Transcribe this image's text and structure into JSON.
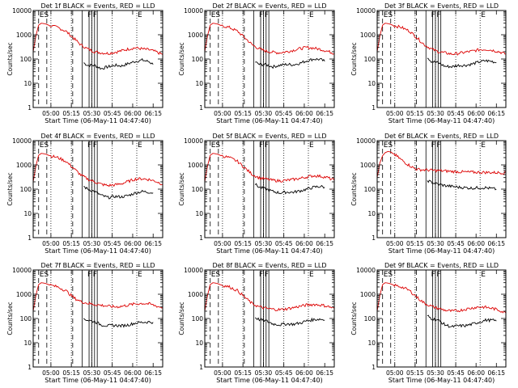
{
  "chart_data": [
    {
      "type": "line",
      "title": "Det 1f BLACK = Events, RED = LLD",
      "xlabel": "Start Time (06-May-11 04:47:40)",
      "ylabel": "Counts/sec",
      "x_ticks": [
        "05:00",
        "05:15",
        "05:30",
        "05:45",
        "06:00",
        "06:15"
      ],
      "y_ticks": [
        "1",
        "10",
        "100",
        "1000",
        "10000"
      ],
      "yscale": "log",
      "ylim": [
        1,
        10000
      ],
      "xlim_minutes_from_0447": [
        0,
        95
      ],
      "markers": [
        "ES",
        "F",
        "E"
      ],
      "series": [
        {
          "color": "#000000",
          "x": [
            37,
            40,
            45,
            50,
            55,
            60,
            65,
            70,
            75,
            80,
            85,
            88
          ],
          "values": [
            70,
            55,
            55,
            40,
            48,
            55,
            52,
            65,
            80,
            90,
            78,
            60
          ]
        },
        {
          "color": "#dd0000",
          "x": [
            0,
            2,
            4,
            6,
            9,
            12,
            18,
            24,
            30,
            35,
            40,
            45,
            50,
            55,
            60,
            65,
            70,
            75,
            80,
            85,
            90,
            95
          ],
          "values": [
            200,
            900,
            2500,
            3000,
            2800,
            2400,
            2000,
            1400,
            700,
            380,
            260,
            200,
            180,
            170,
            190,
            220,
            260,
            290,
            260,
            240,
            200,
            150
          ]
        }
      ]
    },
    {
      "type": "line",
      "title": "Det 2f BLACK = Events, RED = LLD",
      "xlabel": "Start Time (06-May-11 04:47:40)",
      "ylabel": "Counts/sec",
      "x_ticks": [
        "05:00",
        "05:15",
        "05:30",
        "05:45",
        "06:00",
        "06:15"
      ],
      "y_ticks": [
        "1",
        "10",
        "100",
        "1000",
        "10000"
      ],
      "yscale": "log",
      "ylim": [
        1,
        10000
      ],
      "xlim_minutes_from_0447": [
        0,
        95
      ],
      "markers": [
        "ES",
        "F",
        "E"
      ],
      "series": [
        {
          "color": "#000000",
          "x": [
            37,
            40,
            45,
            50,
            55,
            60,
            65,
            70,
            75,
            80,
            85,
            88
          ],
          "values": [
            75,
            60,
            58,
            48,
            55,
            60,
            58,
            68,
            85,
            100,
            95,
            80
          ]
        },
        {
          "color": "#dd0000",
          "x": [
            0,
            2,
            4,
            6,
            9,
            12,
            18,
            24,
            30,
            35,
            40,
            45,
            50,
            55,
            60,
            65,
            70,
            75,
            80,
            85,
            90,
            95
          ],
          "values": [
            200,
            900,
            2500,
            3000,
            2800,
            2400,
            2000,
            1400,
            700,
            380,
            260,
            210,
            190,
            180,
            200,
            230,
            270,
            300,
            280,
            250,
            210,
            170
          ]
        }
      ]
    },
    {
      "type": "line",
      "title": "Det 3f BLACK = Events, RED = LLD",
      "xlabel": "Start Time (06-May-11 04:47:40)",
      "ylabel": "Counts/sec",
      "x_ticks": [
        "05:00",
        "05:15",
        "05:30",
        "05:45",
        "06:00",
        "06:15"
      ],
      "y_ticks": [
        "1",
        "10",
        "100",
        "1000",
        "10000"
      ],
      "yscale": "log",
      "ylim": [
        1,
        10000
      ],
      "xlim_minutes_from_0447": [
        0,
        95
      ],
      "markers": [
        "ES",
        "F",
        "E"
      ],
      "series": [
        {
          "color": "#000000",
          "x": [
            37,
            40,
            45,
            50,
            55,
            60,
            65,
            70,
            75,
            80,
            85,
            88
          ],
          "values": [
            120,
            80,
            70,
            50,
            48,
            55,
            55,
            62,
            75,
            85,
            80,
            70
          ]
        },
        {
          "color": "#dd0000",
          "x": [
            0,
            2,
            4,
            6,
            9,
            12,
            18,
            24,
            30,
            35,
            40,
            45,
            50,
            55,
            60,
            65,
            70,
            75,
            80,
            85,
            90,
            95
          ],
          "values": [
            200,
            900,
            2500,
            3000,
            2800,
            2400,
            2000,
            1400,
            700,
            380,
            260,
            200,
            180,
            160,
            170,
            190,
            210,
            240,
            250,
            230,
            200,
            160
          ]
        }
      ]
    },
    {
      "type": "line",
      "title": "Det 4f BLACK = Events, RED = LLD",
      "xlabel": "Start Time (06-May-11 04:47:40)",
      "ylabel": "Counts/sec",
      "x_ticks": [
        "05:00",
        "05:15",
        "05:30",
        "05:45",
        "06:00",
        "06:15"
      ],
      "y_ticks": [
        "1",
        "10",
        "100",
        "1000",
        "10000"
      ],
      "yscale": "log",
      "ylim": [
        1,
        10000
      ],
      "xlim_minutes_from_0447": [
        0,
        95
      ],
      "markers": [
        "ES",
        "F",
        "E"
      ],
      "series": [
        {
          "color": "#000000",
          "x": [
            37,
            40,
            45,
            50,
            55,
            60,
            65,
            70,
            75,
            80,
            85,
            88
          ],
          "values": [
            130,
            100,
            80,
            55,
            45,
            50,
            48,
            55,
            70,
            80,
            75,
            70
          ]
        },
        {
          "color": "#dd0000",
          "x": [
            0,
            2,
            4,
            6,
            9,
            12,
            18,
            24,
            30,
            35,
            40,
            45,
            50,
            55,
            60,
            65,
            70,
            75,
            80,
            85,
            90,
            95
          ],
          "values": [
            200,
            900,
            2500,
            3000,
            2800,
            2400,
            2000,
            1400,
            700,
            380,
            260,
            200,
            160,
            140,
            150,
            170,
            210,
            260,
            270,
            250,
            210,
            160
          ]
        }
      ]
    },
    {
      "type": "line",
      "title": "Det 5f BLACK = Events, RED = LLD",
      "xlabel": "Start Time (06-May-11 04:47:40)",
      "ylabel": "Counts/sec",
      "x_ticks": [
        "05:00",
        "05:15",
        "05:30",
        "05:45",
        "06:00",
        "06:15"
      ],
      "y_ticks": [
        "1",
        "10",
        "100",
        "1000",
        "10000"
      ],
      "yscale": "log",
      "ylim": [
        1,
        10000
      ],
      "xlim_minutes_from_0447": [
        0,
        95
      ],
      "markers": [
        "ES",
        "F",
        "E"
      ],
      "series": [
        {
          "color": "#000000",
          "x": [
            37,
            40,
            45,
            50,
            55,
            60,
            65,
            70,
            75,
            80,
            85,
            88
          ],
          "values": [
            160,
            120,
            100,
            80,
            70,
            75,
            75,
            85,
            100,
            120,
            130,
            120
          ]
        },
        {
          "color": "#dd0000",
          "x": [
            0,
            2,
            4,
            6,
            9,
            12,
            18,
            24,
            30,
            35,
            40,
            45,
            50,
            55,
            60,
            65,
            70,
            75,
            80,
            85,
            90,
            95
          ],
          "values": [
            200,
            900,
            2500,
            3000,
            2800,
            2400,
            2000,
            1400,
            700,
            400,
            290,
            260,
            230,
            220,
            230,
            250,
            280,
            320,
            360,
            340,
            300,
            230
          ]
        }
      ]
    },
    {
      "type": "line",
      "title": "Det 6f BLACK = Events, RED = LLD",
      "xlabel": "Start Time (06-May-11 04:47:40)",
      "ylabel": "Counts/sec",
      "x_ticks": [
        "05:00",
        "05:15",
        "05:30",
        "05:45",
        "06:00",
        "06:15"
      ],
      "y_ticks": [
        "1",
        "10",
        "100",
        "1000",
        "10000"
      ],
      "yscale": "log",
      "ylim": [
        1,
        10000
      ],
      "xlim_minutes_from_0447": [
        0,
        95
      ],
      "markers": [
        "ES",
        "F",
        "E"
      ],
      "series": [
        {
          "color": "#000000",
          "x": [
            37,
            40,
            45,
            50,
            55,
            60,
            65,
            70,
            75,
            80,
            85,
            88
          ],
          "values": [
            230,
            190,
            160,
            140,
            130,
            120,
            115,
            110,
            115,
            115,
            105,
            100
          ]
        },
        {
          "color": "#dd0000",
          "x": [
            0,
            2,
            4,
            6,
            8,
            10,
            14,
            18,
            22,
            26,
            28,
            30,
            35,
            40,
            45,
            50,
            55,
            60,
            65,
            70,
            75,
            80,
            85,
            90,
            95
          ],
          "values": [
            300,
            1200,
            2400,
            3200,
            3600,
            3400,
            2400,
            1600,
            1100,
            800,
            700,
            650,
            620,
            600,
            580,
            560,
            540,
            520,
            510,
            500,
            495,
            490,
            485,
            480,
            470
          ]
        }
      ]
    },
    {
      "type": "line",
      "title": "Det 7f BLACK = Events, RED = LLD",
      "xlabel": "Start Time (06-May-11 04:47:40)",
      "ylabel": "Counts/sec",
      "x_ticks": [
        "05:00",
        "05:15",
        "05:30",
        "05:45",
        "06:00",
        "06:15"
      ],
      "y_ticks": [
        "1",
        "10",
        "100",
        "1000",
        "10000"
      ],
      "yscale": "log",
      "ylim": [
        1,
        10000
      ],
      "xlim_minutes_from_0447": [
        0,
        95
      ],
      "markers": [
        "ES",
        "F",
        "E"
      ],
      "series": [
        {
          "color": "#000000",
          "x": [
            37,
            40,
            45,
            50,
            55,
            60,
            65,
            70,
            75,
            80,
            85,
            88
          ],
          "values": [
            100,
            85,
            75,
            55,
            50,
            52,
            50,
            55,
            65,
            70,
            72,
            70
          ]
        },
        {
          "color": "#dd0000",
          "x": [
            0,
            2,
            4,
            6,
            9,
            12,
            18,
            24,
            30,
            35,
            40,
            45,
            50,
            55,
            60,
            65,
            70,
            75,
            80,
            85,
            90,
            95
          ],
          "values": [
            200,
            900,
            2500,
            3000,
            2800,
            2400,
            2000,
            1400,
            700,
            500,
            420,
            380,
            350,
            320,
            300,
            320,
            360,
            400,
            420,
            400,
            330,
            280
          ]
        }
      ]
    },
    {
      "type": "line",
      "title": "Det 8f BLACK = Events, RED = LLD",
      "xlabel": "Start Time (06-May-11 04:47:40)",
      "ylabel": "Counts/sec",
      "x_ticks": [
        "05:00",
        "05:15",
        "05:30",
        "05:45",
        "06:00",
        "06:15"
      ],
      "y_ticks": [
        "1",
        "10",
        "100",
        "1000",
        "10000"
      ],
      "yscale": "log",
      "ylim": [
        1,
        10000
      ],
      "xlim_minutes_from_0447": [
        0,
        95
      ],
      "markers": [
        "ES",
        "F",
        "E"
      ],
      "series": [
        {
          "color": "#000000",
          "x": [
            37,
            40,
            45,
            50,
            55,
            60,
            65,
            70,
            75,
            80,
            85,
            88
          ],
          "values": [
            110,
            90,
            80,
            60,
            55,
            60,
            58,
            65,
            80,
            90,
            95,
            85
          ]
        },
        {
          "color": "#dd0000",
          "x": [
            0,
            2,
            4,
            6,
            9,
            12,
            18,
            24,
            30,
            35,
            40,
            45,
            50,
            55,
            60,
            65,
            70,
            75,
            80,
            85,
            90,
            95
          ],
          "values": [
            200,
            900,
            2500,
            3000,
            2800,
            2400,
            2000,
            1400,
            700,
            400,
            300,
            260,
            240,
            230,
            250,
            280,
            320,
            360,
            380,
            360,
            320,
            260
          ]
        }
      ]
    },
    {
      "type": "line",
      "title": "Det 9f BLACK = Events, RED = LLD",
      "xlabel": "Start Time (06-May-11 04:47:40)",
      "ylabel": "Counts/sec",
      "x_ticks": [
        "05:00",
        "05:15",
        "05:30",
        "05:45",
        "06:00",
        "06:15"
      ],
      "y_ticks": [
        "1",
        "10",
        "100",
        "1000",
        "10000"
      ],
      "yscale": "log",
      "ylim": [
        1,
        10000
      ],
      "xlim_minutes_from_0447": [
        0,
        95
      ],
      "markers": [
        "ES",
        "F",
        "E"
      ],
      "series": [
        {
          "color": "#000000",
          "x": [
            37,
            40,
            45,
            50,
            55,
            60,
            65,
            70,
            75,
            80,
            85,
            88
          ],
          "values": [
            130,
            100,
            85,
            55,
            45,
            50,
            50,
            58,
            70,
            85,
            85,
            78
          ]
        },
        {
          "color": "#dd0000",
          "x": [
            0,
            2,
            4,
            6,
            9,
            12,
            18,
            24,
            30,
            35,
            40,
            45,
            50,
            55,
            60,
            65,
            70,
            75,
            80,
            85,
            90,
            95
          ],
          "values": [
            200,
            900,
            2500,
            3000,
            2800,
            2400,
            2000,
            1400,
            700,
            420,
            320,
            260,
            220,
            200,
            210,
            240,
            270,
            300,
            290,
            260,
            220,
            170
          ]
        }
      ]
    }
  ]
}
